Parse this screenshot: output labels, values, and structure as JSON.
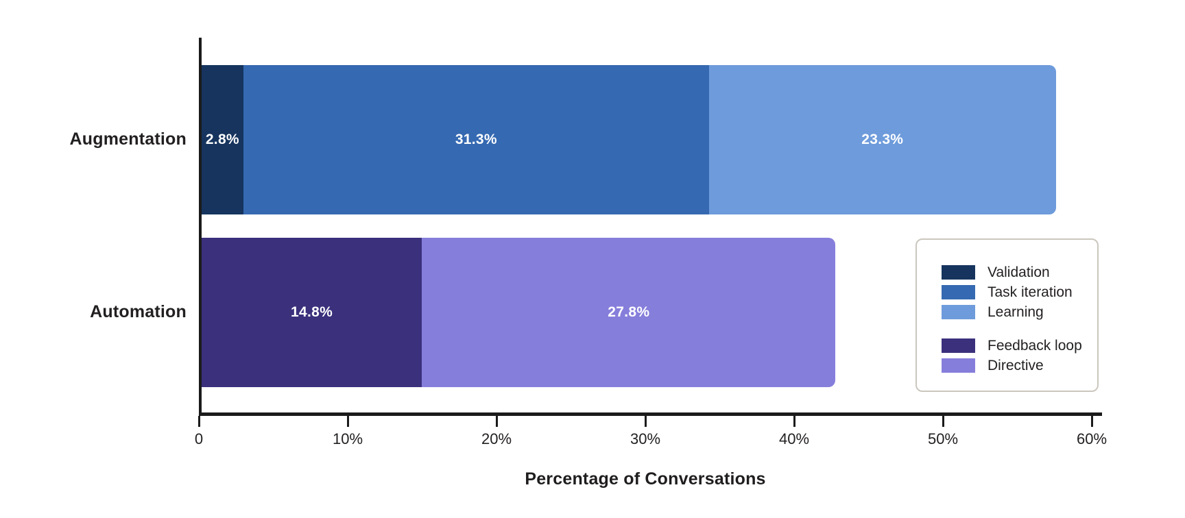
{
  "chart_data": {
    "type": "bar",
    "orientation": "horizontal",
    "stacked": true,
    "title": "",
    "xlabel": "Percentage of Conversations",
    "ylabel": "",
    "xlim": [
      0,
      60
    ],
    "grid": false,
    "legend_position": "right-middle",
    "x_ticks": [
      {
        "value": 0,
        "label": "0"
      },
      {
        "value": 10,
        "label": "10%"
      },
      {
        "value": 20,
        "label": "20%"
      },
      {
        "value": 30,
        "label": "30%"
      },
      {
        "value": 40,
        "label": "40%"
      },
      {
        "value": 50,
        "label": "50%"
      },
      {
        "value": 60,
        "label": "60%"
      }
    ],
    "categories": [
      "Augmentation",
      "Automation"
    ],
    "bars": [
      {
        "category": "Augmentation",
        "segments": [
          {
            "name": "Validation",
            "value": 2.8,
            "label": "2.8%",
            "color": "#16345e"
          },
          {
            "name": "Task iteration",
            "value": 31.3,
            "label": "31.3%",
            "color": "#3569b1"
          },
          {
            "name": "Learning",
            "value": 23.3,
            "label": "23.3%",
            "color": "#6d9bdb"
          }
        ]
      },
      {
        "category": "Automation",
        "segments": [
          {
            "name": "Feedback loop",
            "value": 14.8,
            "label": "14.8%",
            "color": "#3a307c"
          },
          {
            "name": "Directive",
            "value": 27.8,
            "label": "27.8%",
            "color": "#867edb"
          }
        ]
      }
    ],
    "legend_groups": [
      [
        {
          "name": "Validation",
          "color": "#16345e"
        },
        {
          "name": "Task iteration",
          "color": "#3569b1"
        },
        {
          "name": "Learning",
          "color": "#6d9bdb"
        }
      ],
      [
        {
          "name": "Feedback loop",
          "color": "#3a307c"
        },
        {
          "name": "Directive",
          "color": "#867edb"
        }
      ]
    ],
    "colors": {
      "axis": "#1b1b1b",
      "tick_text": "#232021",
      "category_text": "#221f20",
      "value_text": "#ffffff",
      "legend_border": "#cbc7be",
      "background": "#ffffff"
    }
  }
}
